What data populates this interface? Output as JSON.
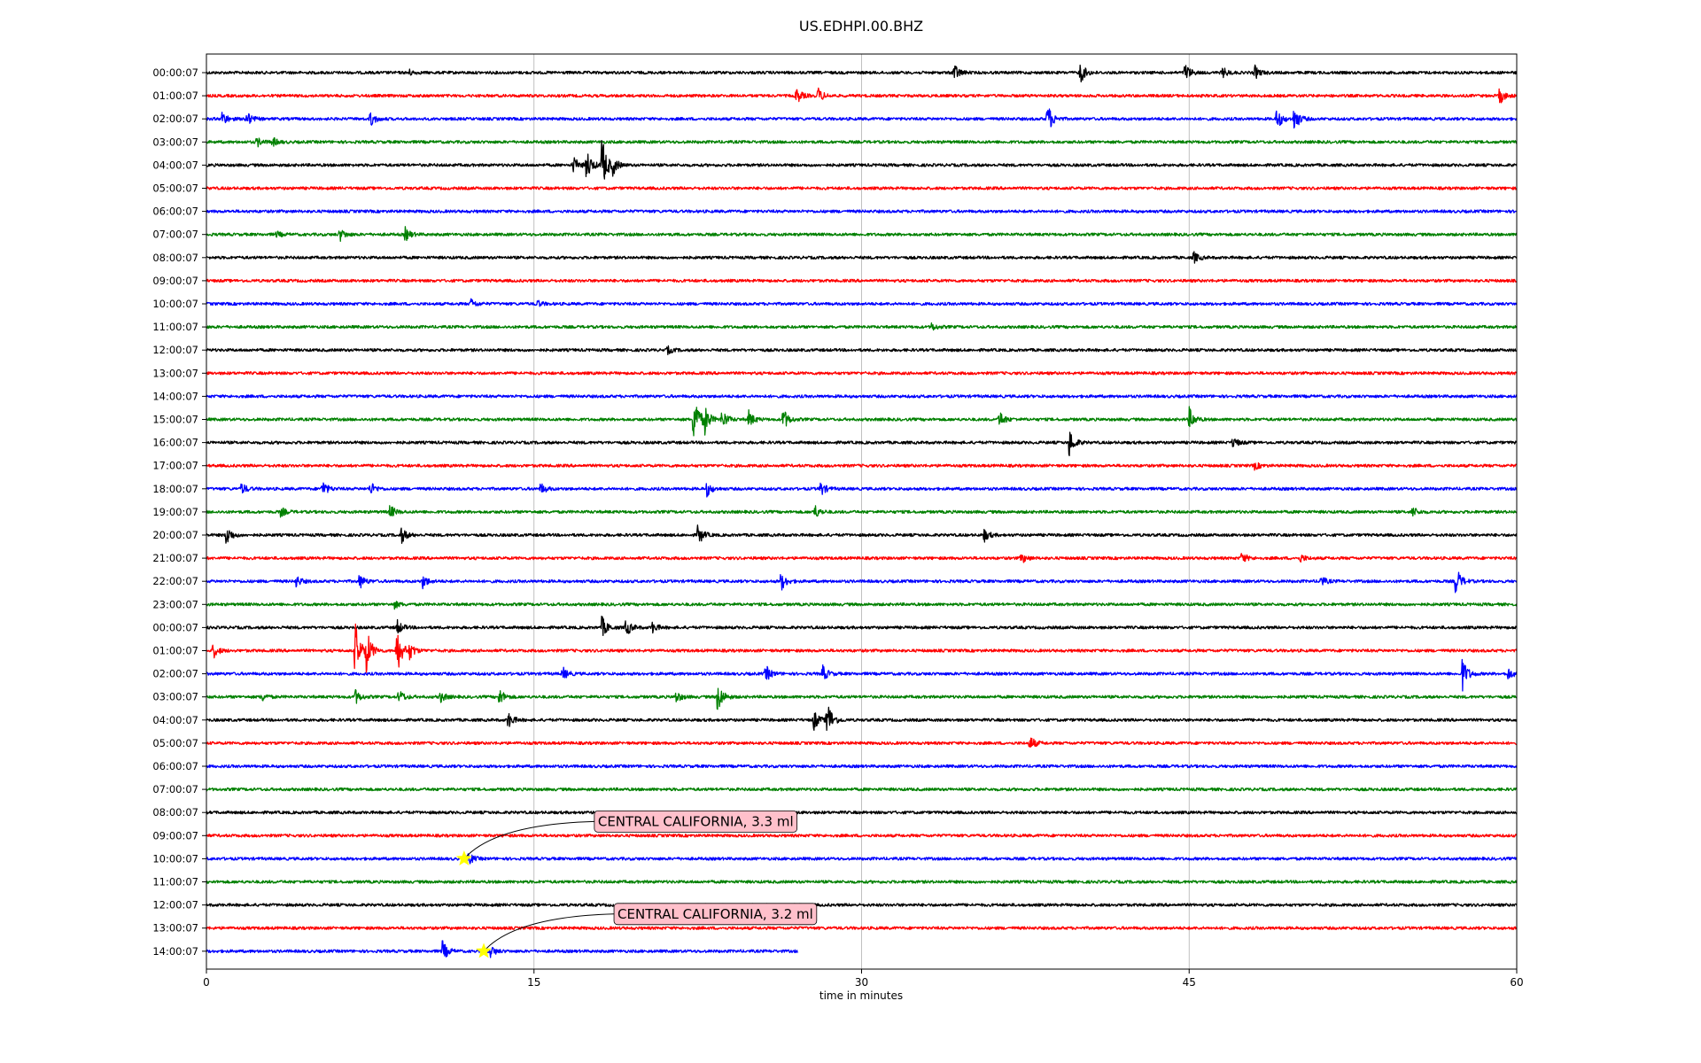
{
  "chart_data": {
    "type": "line",
    "title": "US.EDHPI.00.BHZ",
    "xlabel": "time in minutes",
    "ylabel": "",
    "xlim": [
      0,
      60
    ],
    "x_ticks": [
      0,
      15,
      30,
      45,
      60
    ],
    "grid": "vertical",
    "row_colors": [
      "#000000",
      "#ff0000",
      "#0000ff",
      "#008000"
    ],
    "rows": [
      {
        "label": "00:00:07",
        "events": [
          {
            "t": 34.2,
            "amp": 0.55
          },
          {
            "t": 40.0,
            "amp": 0.6
          },
          {
            "t": 44.8,
            "amp": 0.5
          },
          {
            "t": 46.5,
            "amp": 0.3
          },
          {
            "t": 48.0,
            "amp": 0.35
          },
          {
            "t": 9.2,
            "amp": 0.2
          }
        ]
      },
      {
        "label": "01:00:07",
        "events": [
          {
            "t": 27.0,
            "amp": 0.45
          },
          {
            "t": 28.0,
            "amp": 0.4
          },
          {
            "t": 59.2,
            "amp": 0.45
          }
        ]
      },
      {
        "label": "02:00:07",
        "events": [
          {
            "t": 0.7,
            "amp": 0.4
          },
          {
            "t": 1.8,
            "amp": 0.45
          },
          {
            "t": 7.5,
            "amp": 0.4
          },
          {
            "t": 38.5,
            "amp": 0.85
          },
          {
            "t": 49.0,
            "amp": 0.6
          },
          {
            "t": 49.8,
            "amp": 0.7
          }
        ]
      },
      {
        "label": "03:00:07",
        "events": [
          {
            "t": 2.3,
            "amp": 0.25
          },
          {
            "t": 3.0,
            "amp": 0.25
          }
        ]
      },
      {
        "label": "04:00:07",
        "events": [
          {
            "t": 16.8,
            "amp": 0.45
          },
          {
            "t": 17.4,
            "amp": 0.85
          },
          {
            "t": 18.1,
            "amp": 1.55
          },
          {
            "t": 18.6,
            "amp": 0.4
          }
        ]
      },
      {
        "label": "05:00:07",
        "events": []
      },
      {
        "label": "06:00:07",
        "events": []
      },
      {
        "label": "07:00:07",
        "events": [
          {
            "t": 6.1,
            "amp": 0.35
          },
          {
            "t": 9.1,
            "amp": 0.35
          },
          {
            "t": 3.2,
            "amp": 0.15
          }
        ]
      },
      {
        "label": "08:00:07",
        "events": [
          {
            "t": 45.2,
            "amp": 0.3
          }
        ]
      },
      {
        "label": "09:00:07",
        "events": []
      },
      {
        "label": "10:00:07",
        "events": [
          {
            "t": 12.1,
            "amp": 0.25
          },
          {
            "t": 15.1,
            "amp": 0.2
          }
        ]
      },
      {
        "label": "11:00:07",
        "events": [
          {
            "t": 33.2,
            "amp": 0.2
          }
        ]
      },
      {
        "label": "12:00:07",
        "events": [
          {
            "t": 21.1,
            "amp": 0.2
          }
        ]
      },
      {
        "label": "13:00:07",
        "events": []
      },
      {
        "label": "14:00:07",
        "events": []
      },
      {
        "label": "15:00:07",
        "events": [
          {
            "t": 22.3,
            "amp": 1.7
          },
          {
            "t": 22.8,
            "amp": 0.7
          },
          {
            "t": 23.6,
            "amp": 0.55
          },
          {
            "t": 24.8,
            "amp": 0.5
          },
          {
            "t": 26.4,
            "amp": 0.6
          },
          {
            "t": 36.3,
            "amp": 0.45
          },
          {
            "t": 45.0,
            "amp": 0.6
          }
        ]
      },
      {
        "label": "16:00:07",
        "events": [
          {
            "t": 39.5,
            "amp": 0.75
          },
          {
            "t": 47.0,
            "amp": 0.3
          }
        ]
      },
      {
        "label": "17:00:07",
        "events": [
          {
            "t": 48.0,
            "amp": 0.2
          }
        ]
      },
      {
        "label": "18:00:07",
        "events": [
          {
            "t": 1.6,
            "amp": 0.3
          },
          {
            "t": 5.3,
            "amp": 0.45
          },
          {
            "t": 7.5,
            "amp": 0.35
          },
          {
            "t": 15.3,
            "amp": 0.3
          },
          {
            "t": 22.9,
            "amp": 0.4
          },
          {
            "t": 28.1,
            "amp": 0.4
          }
        ]
      },
      {
        "label": "19:00:07",
        "events": [
          {
            "t": 3.4,
            "amp": 0.25
          },
          {
            "t": 8.4,
            "amp": 0.35
          },
          {
            "t": 27.8,
            "amp": 0.45
          },
          {
            "t": 55.2,
            "amp": 0.3
          }
        ]
      },
      {
        "label": "20:00:07",
        "events": [
          {
            "t": 0.9,
            "amp": 0.55
          },
          {
            "t": 8.9,
            "amp": 0.45
          },
          {
            "t": 22.5,
            "amp": 0.55
          },
          {
            "t": 35.6,
            "amp": 0.35
          }
        ]
      },
      {
        "label": "21:00:07",
        "events": [
          {
            "t": 37.3,
            "amp": 0.3
          },
          {
            "t": 47.4,
            "amp": 0.3
          },
          {
            "t": 50.1,
            "amp": 0.2
          }
        ]
      },
      {
        "label": "22:00:07",
        "events": [
          {
            "t": 4.1,
            "amp": 0.3
          },
          {
            "t": 7.0,
            "amp": 0.4
          },
          {
            "t": 9.9,
            "amp": 0.35
          },
          {
            "t": 26.3,
            "amp": 0.5
          },
          {
            "t": 51.0,
            "amp": 0.3
          },
          {
            "t": 57.2,
            "amp": 0.8
          }
        ]
      },
      {
        "label": "23:00:07",
        "events": [
          {
            "t": 8.6,
            "amp": 0.2
          }
        ]
      },
      {
        "label": "00:00:07",
        "events": [
          {
            "t": 8.7,
            "amp": 0.45
          },
          {
            "t": 18.1,
            "amp": 0.6
          },
          {
            "t": 19.2,
            "amp": 0.5
          },
          {
            "t": 20.4,
            "amp": 0.3
          }
        ]
      },
      {
        "label": "01:00:07",
        "events": [
          {
            "t": 0.3,
            "amp": 0.4
          },
          {
            "t": 6.8,
            "amp": 1.55
          },
          {
            "t": 7.3,
            "amp": 1.2
          },
          {
            "t": 8.7,
            "amp": 1.35
          },
          {
            "t": 9.3,
            "amp": 0.4
          }
        ]
      },
      {
        "label": "02:00:07",
        "events": [
          {
            "t": 16.3,
            "amp": 0.35
          },
          {
            "t": 25.6,
            "amp": 0.45
          },
          {
            "t": 28.2,
            "amp": 0.45
          },
          {
            "t": 57.5,
            "amp": 0.9
          },
          {
            "t": 59.6,
            "amp": 0.3
          }
        ]
      },
      {
        "label": "03:00:07",
        "events": [
          {
            "t": 2.5,
            "amp": 0.25
          },
          {
            "t": 6.8,
            "amp": 0.4
          },
          {
            "t": 8.8,
            "amp": 0.4
          },
          {
            "t": 10.7,
            "amp": 0.3
          },
          {
            "t": 13.4,
            "amp": 0.45
          },
          {
            "t": 21.5,
            "amp": 0.3
          },
          {
            "t": 23.4,
            "amp": 0.85
          }
        ]
      },
      {
        "label": "04:00:07",
        "events": [
          {
            "t": 13.8,
            "amp": 0.45
          },
          {
            "t": 27.8,
            "amp": 0.55
          },
          {
            "t": 28.4,
            "amp": 1.15
          }
        ]
      },
      {
        "label": "05:00:07",
        "events": [
          {
            "t": 37.7,
            "amp": 0.4
          }
        ]
      },
      {
        "label": "06:00:07",
        "events": []
      },
      {
        "label": "07:00:07",
        "events": []
      },
      {
        "label": "08:00:07",
        "events": []
      },
      {
        "label": "09:00:07",
        "events": []
      },
      {
        "label": "10:00:07",
        "events": [
          {
            "t": 12.0,
            "amp": 0.3
          }
        ]
      },
      {
        "label": "11:00:07",
        "events": []
      },
      {
        "label": "12:00:07",
        "events": []
      },
      {
        "label": "13:00:07",
        "events": []
      },
      {
        "label": "14:00:07",
        "end_t": 27.1,
        "events": [
          {
            "t": 10.8,
            "amp": 0.55
          },
          {
            "t": 13.0,
            "amp": 0.3
          }
        ]
      }
    ],
    "annotations": [
      {
        "text": "CENTRAL CALIFORNIA, 3.3 ml",
        "row": 34,
        "t": 11.8,
        "marker": "star",
        "marker_color": "#ffff00",
        "box_color": "#ffc0cb"
      },
      {
        "text": "CENTRAL CALIFORNIA, 3.2 ml",
        "row": 38,
        "t": 12.7,
        "marker": "star",
        "marker_color": "#ffff00",
        "box_color": "#ffc0cb"
      }
    ]
  }
}
